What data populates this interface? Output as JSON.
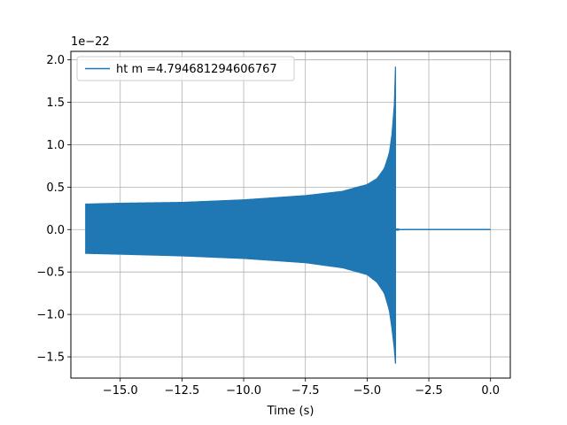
{
  "chart_data": {
    "type": "line",
    "title": "",
    "xlabel": "Time (s)",
    "ylabel": "",
    "y_scale_label": "1e−22",
    "xlim": [
      -17.0,
      0.8
    ],
    "ylim": [
      -1.75,
      2.1
    ],
    "xticks": [
      -15.0,
      -12.5,
      -10.0,
      -7.5,
      -5.0,
      -2.5,
      0.0
    ],
    "xtick_labels": [
      "−15.0",
      "−12.5",
      "−10.0",
      "−7.5",
      "−5.0",
      "−2.5",
      "0.0"
    ],
    "yticks": [
      -1.5,
      -1.0,
      -0.5,
      0.0,
      0.5,
      1.0,
      1.5,
      2.0
    ],
    "ytick_labels": [
      "−1.5",
      "−1.0",
      "−0.5",
      "0.0",
      "0.5",
      "1.0",
      "1.5",
      "2.0"
    ],
    "grid": true,
    "legend_position": "top-left",
    "series": [
      {
        "name": "ht m =4.794681294606767",
        "color": "#1f77b4",
        "envelope_x": [
          -16.4,
          -15.0,
          -12.5,
          -10.0,
          -7.5,
          -6.0,
          -5.0,
          -4.6,
          -4.3,
          -4.1,
          -4.0,
          -3.9,
          -3.85
        ],
        "envelope_upper": [
          0.3,
          0.31,
          0.32,
          0.35,
          0.4,
          0.45,
          0.53,
          0.6,
          0.72,
          0.9,
          1.1,
          1.45,
          1.92
        ],
        "envelope_lower": [
          -0.28,
          -0.29,
          -0.31,
          -0.34,
          -0.39,
          -0.45,
          -0.53,
          -0.62,
          -0.75,
          -0.95,
          -1.15,
          -1.4,
          -1.58
        ],
        "ringdown_x": [
          -3.85,
          -3.7
        ],
        "flat_x": [
          -3.7,
          0.0
        ],
        "flat_y": 0.0
      }
    ]
  }
}
